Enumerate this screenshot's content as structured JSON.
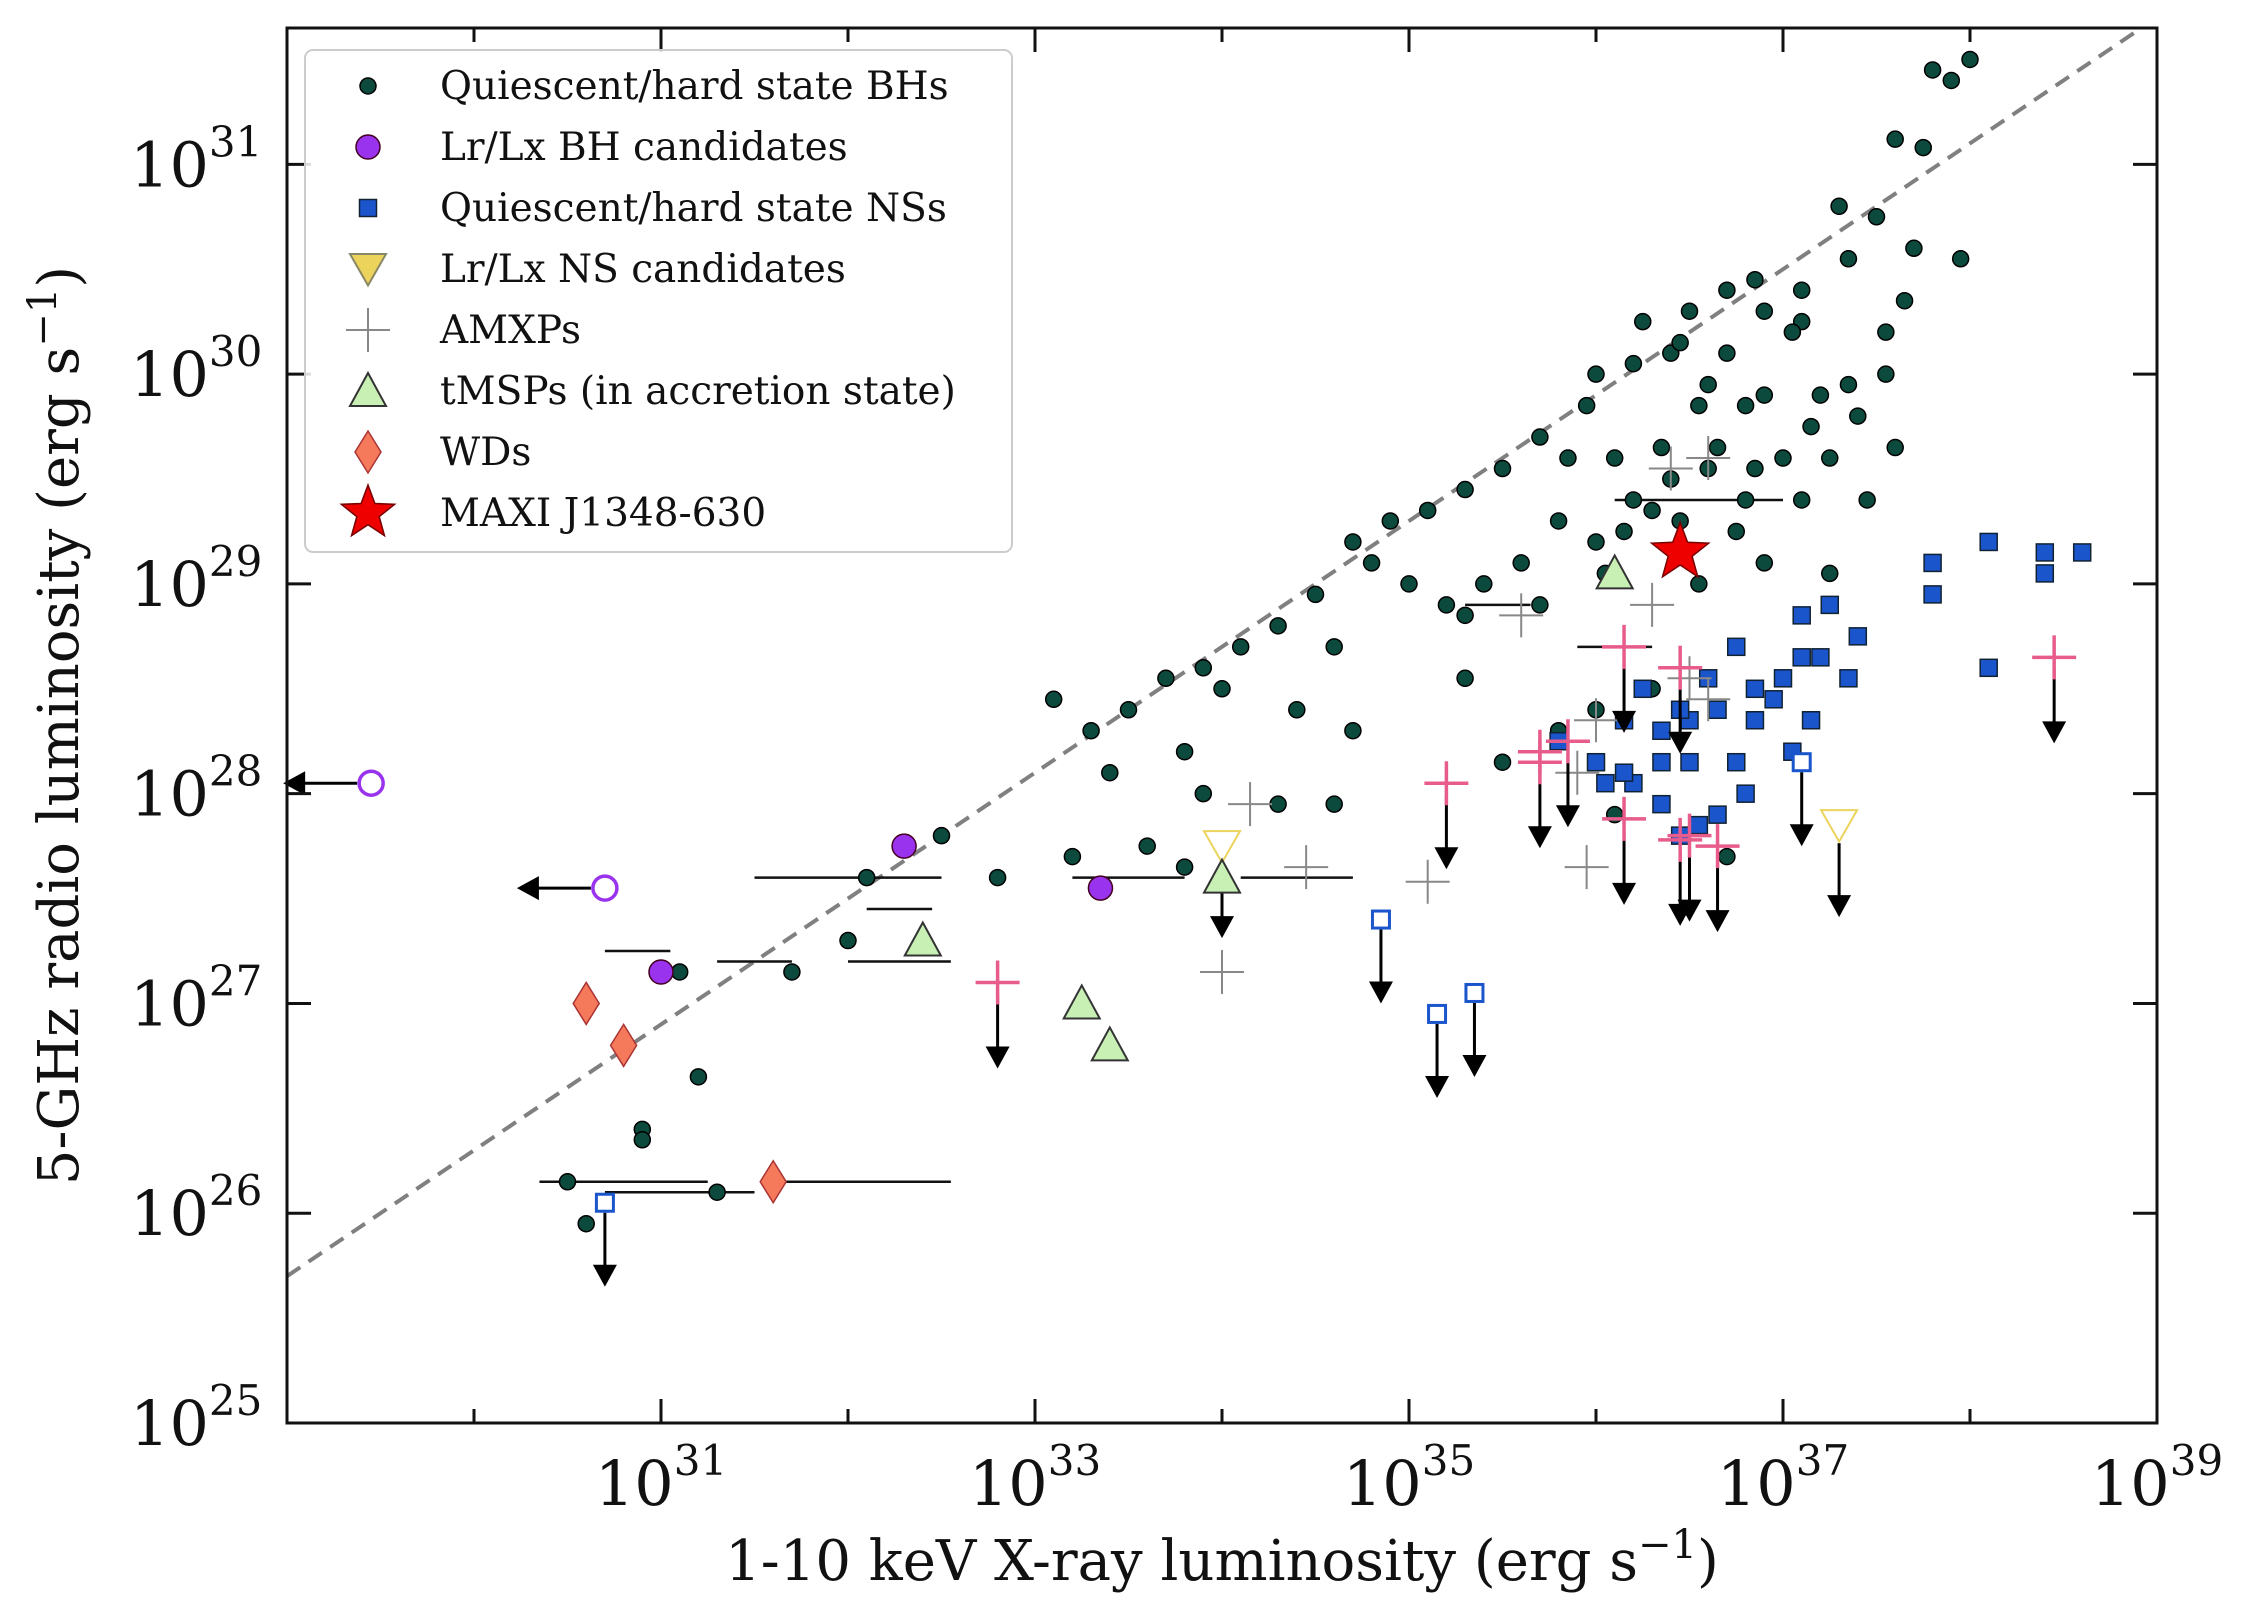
{
  "chart_data": {
    "type": "scatter",
    "title": "",
    "x_axis": {
      "label": "1-10 keV X-ray luminosity (erg s",
      "label_sup": "−1",
      "label_suffix": ")",
      "scale": "log",
      "range_log10": [
        29,
        39
      ],
      "tick_exponents": [
        "31",
        "33",
        "35",
        "37",
        "39"
      ]
    },
    "y_axis": {
      "label": "5-GHz radio luminosity (erg s",
      "label_sup": "−1",
      "label_suffix": ")",
      "scale": "log",
      "range_log10": [
        25,
        31.65
      ],
      "tick_exponents": [
        "25",
        "26",
        "27",
        "28",
        "29",
        "30",
        "31"
      ]
    },
    "tick_base": "10",
    "reference_line": {
      "style": "dashed",
      "color": "#808080",
      "slope": 0.6,
      "log_point": [
        31.5,
        27.2
      ]
    },
    "legend_position": "top-left",
    "legend": [
      {
        "key": "bh",
        "label": "Quiescent/hard state BHs"
      },
      {
        "key": "bhc",
        "label": "Lr/Lx BH candidates"
      },
      {
        "key": "ns",
        "label": "Quiescent/hard state NSs"
      },
      {
        "key": "nsc",
        "label": "Lr/Lx NS candidates"
      },
      {
        "key": "amxp",
        "label": "AMXPs"
      },
      {
        "key": "tmsp",
        "label": "tMSPs (in accretion state)"
      },
      {
        "key": "wd",
        "label": "WDs"
      },
      {
        "key": "maxi",
        "label": "MAXI J1348-630"
      }
    ],
    "colors": {
      "bh": "#0d4a3e",
      "bhc": "#9933ee",
      "ns": "#1a55cc",
      "nsc": "#ecd35c",
      "amxp_grey": "#888888",
      "amxp_pink": "#e85c8c",
      "tmsp": "#c8f0b4",
      "wd": "#f57a5c",
      "maxi": "#ee0000",
      "arrow": "#000000"
    },
    "series": [
      {
        "name": "Quiescent/hard state BHs",
        "key": "bh",
        "points": [
          [
            37.9,
            31.4
          ],
          [
            38.0,
            31.5
          ],
          [
            37.8,
            31.45
          ],
          [
            37.6,
            31.12
          ],
          [
            37.75,
            31.08
          ],
          [
            37.5,
            30.75
          ],
          [
            37.3,
            30.8
          ],
          [
            37.7,
            30.6
          ],
          [
            37.35,
            30.55
          ],
          [
            37.1,
            30.4
          ],
          [
            36.85,
            30.45
          ],
          [
            36.5,
            30.3
          ],
          [
            36.7,
            30.1
          ],
          [
            37.1,
            30.25
          ],
          [
            36.9,
            30.3
          ],
          [
            37.05,
            30.2
          ],
          [
            36.4,
            30.1
          ],
          [
            36.2,
            30.05
          ],
          [
            36.0,
            30.0
          ],
          [
            36.6,
            29.95
          ],
          [
            36.8,
            29.85
          ],
          [
            37.2,
            29.9
          ],
          [
            37.4,
            29.8
          ],
          [
            35.95,
            29.85
          ],
          [
            35.7,
            29.7
          ],
          [
            36.1,
            29.6
          ],
          [
            36.4,
            29.5
          ],
          [
            36.6,
            29.55
          ],
          [
            36.8,
            29.4
          ],
          [
            37.0,
            29.6
          ],
          [
            36.45,
            29.3
          ],
          [
            36.75,
            29.25
          ],
          [
            36.9,
            29.1
          ],
          [
            36.3,
            29.35
          ],
          [
            36.2,
            29.4
          ],
          [
            36.0,
            29.2
          ],
          [
            35.8,
            29.3
          ],
          [
            35.5,
            29.55
          ],
          [
            35.3,
            29.45
          ],
          [
            35.1,
            29.35
          ],
          [
            34.9,
            29.3
          ],
          [
            34.7,
            29.2
          ],
          [
            35.6,
            29.1
          ],
          [
            35.4,
            29.0
          ],
          [
            35.2,
            28.9
          ],
          [
            35.0,
            29.0
          ],
          [
            34.8,
            29.1
          ],
          [
            34.5,
            28.95
          ],
          [
            34.3,
            28.8
          ],
          [
            34.1,
            28.7
          ],
          [
            33.9,
            28.6
          ],
          [
            33.7,
            28.55
          ],
          [
            33.5,
            28.4
          ],
          [
            33.3,
            28.3
          ],
          [
            33.1,
            28.45
          ],
          [
            33.8,
            28.2
          ],
          [
            34.0,
            28.5
          ],
          [
            34.6,
            28.7
          ],
          [
            35.3,
            28.85
          ],
          [
            35.7,
            28.9
          ],
          [
            36.05,
            29.05
          ],
          [
            34.4,
            28.4
          ],
          [
            34.7,
            28.3
          ],
          [
            33.9,
            28.0
          ],
          [
            33.4,
            28.1
          ],
          [
            33.2,
            27.7
          ],
          [
            33.6,
            27.75
          ],
          [
            33.8,
            27.65
          ],
          [
            32.5,
            27.8
          ],
          [
            32.8,
            27.6
          ],
          [
            32.1,
            27.6
          ],
          [
            32.0,
            27.3
          ],
          [
            31.1,
            27.15
          ],
          [
            31.7,
            27.15
          ],
          [
            31.2,
            26.65
          ],
          [
            30.9,
            26.4
          ],
          [
            30.9,
            26.35
          ],
          [
            31.3,
            26.1
          ],
          [
            30.5,
            26.15
          ],
          [
            30.6,
            25.95
          ],
          [
            34.3,
            27.95
          ],
          [
            34.6,
            27.95
          ],
          [
            35.5,
            28.15
          ],
          [
            35.8,
            28.3
          ],
          [
            36.0,
            28.4
          ],
          [
            36.3,
            28.5
          ],
          [
            36.1,
            27.9
          ],
          [
            36.7,
            27.7
          ],
          [
            35.3,
            28.55
          ],
          [
            36.55,
            29.0
          ],
          [
            37.65,
            30.35
          ],
          [
            37.55,
            30.2
          ],
          [
            37.25,
            29.6
          ],
          [
            37.1,
            29.4
          ],
          [
            36.9,
            29.9
          ],
          [
            36.7,
            30.4
          ],
          [
            36.45,
            30.15
          ],
          [
            36.25,
            30.25
          ],
          [
            35.85,
            29.6
          ],
          [
            36.65,
            29.65
          ],
          [
            36.35,
            29.65
          ],
          [
            36.15,
            29.25
          ],
          [
            37.15,
            29.75
          ],
          [
            37.45,
            29.4
          ],
          [
            37.25,
            29.05
          ],
          [
            36.55,
            29.85
          ],
          [
            36.85,
            29.55
          ],
          [
            37.55,
            30.0
          ],
          [
            37.6,
            29.65
          ],
          [
            37.95,
            30.55
          ],
          [
            37.35,
            29.95
          ]
        ]
      },
      {
        "name": "Lr/Lx BH candidates",
        "key": "bhc",
        "points": [
          [
            32.3,
            27.75
          ],
          [
            33.35,
            27.55
          ],
          [
            31.0,
            27.15
          ]
        ],
        "upper_limits_x": [
          [
            29.45,
            28.05
          ],
          [
            30.7,
            27.55
          ]
        ]
      },
      {
        "name": "Quiescent/hard state NSs",
        "key": "ns",
        "points": [
          [
            38.1,
            29.2
          ],
          [
            38.4,
            29.15
          ],
          [
            38.6,
            29.15
          ],
          [
            38.4,
            29.05
          ],
          [
            37.8,
            29.1
          ],
          [
            37.8,
            28.95
          ],
          [
            37.25,
            28.9
          ],
          [
            37.2,
            28.65
          ],
          [
            37.4,
            28.75
          ],
          [
            37.0,
            28.55
          ],
          [
            36.85,
            28.5
          ],
          [
            36.6,
            28.55
          ],
          [
            36.5,
            28.35
          ],
          [
            36.45,
            28.4
          ],
          [
            36.25,
            28.5
          ],
          [
            36.15,
            28.35
          ],
          [
            36.0,
            28.15
          ],
          [
            35.8,
            28.25
          ],
          [
            36.35,
            28.15
          ],
          [
            36.2,
            28.05
          ],
          [
            36.05,
            28.05
          ],
          [
            36.5,
            28.15
          ],
          [
            36.65,
            28.4
          ],
          [
            36.35,
            28.3
          ],
          [
            36.85,
            28.35
          ],
          [
            36.95,
            28.45
          ],
          [
            36.75,
            28.15
          ],
          [
            37.15,
            28.35
          ],
          [
            37.05,
            28.2
          ],
          [
            36.15,
            28.1
          ],
          [
            36.35,
            27.95
          ],
          [
            36.55,
            27.85
          ],
          [
            36.45,
            27.8
          ],
          [
            36.65,
            27.9
          ],
          [
            36.8,
            28.0
          ],
          [
            36.75,
            28.7
          ],
          [
            37.1,
            28.65
          ],
          [
            37.35,
            28.55
          ],
          [
            38.1,
            28.6
          ],
          [
            37.1,
            28.85
          ]
        ],
        "upper_limits_y": [
          [
            30.7,
            26.05
          ],
          [
            34.85,
            27.4
          ],
          [
            35.15,
            26.95
          ],
          [
            35.35,
            27.05
          ],
          [
            37.1,
            28.15
          ]
        ]
      },
      {
        "name": "Lr/Lx NS candidates",
        "key": "nsc",
        "upper_limits_y": [
          [
            34.0,
            27.75
          ],
          [
            37.3,
            27.85
          ]
        ]
      },
      {
        "name": "AMXPs",
        "key": "amxp",
        "grey_points": [
          [
            34.15,
            27.95
          ],
          [
            34.45,
            27.65
          ],
          [
            34.0,
            27.15
          ],
          [
            35.1,
            27.58
          ],
          [
            35.95,
            27.65
          ],
          [
            35.6,
            28.85
          ],
          [
            36.4,
            29.55
          ],
          [
            36.6,
            29.6
          ],
          [
            36.3,
            28.9
          ],
          [
            36.0,
            28.35
          ],
          [
            36.6,
            28.45
          ],
          [
            35.9,
            28.1
          ],
          [
            36.5,
            28.55
          ]
        ],
        "pink_points": [
          [
            32.8,
            27.1
          ],
          [
            35.2,
            28.05
          ],
          [
            35.7,
            28.15
          ],
          [
            35.85,
            28.25
          ],
          [
            36.15,
            28.7
          ],
          [
            36.45,
            28.6
          ],
          [
            36.15,
            27.88
          ],
          [
            36.5,
            27.8
          ],
          [
            36.65,
            27.75
          ],
          [
            36.45,
            27.78
          ],
          [
            35.7,
            28.2
          ],
          [
            38.45,
            28.65
          ]
        ],
        "upper_limits_y": [
          [
            32.8,
            27.1
          ],
          [
            35.2,
            28.05
          ],
          [
            35.7,
            28.15
          ],
          [
            35.85,
            28.25
          ],
          [
            36.15,
            28.7
          ],
          [
            36.45,
            28.6
          ],
          [
            36.15,
            27.88
          ],
          [
            36.5,
            27.8
          ],
          [
            36.65,
            27.75
          ],
          [
            38.45,
            28.65
          ],
          [
            36.45,
            27.78
          ]
        ]
      },
      {
        "name": "tMSPs (in accretion state)",
        "key": "tmsp",
        "points": [
          [
            32.4,
            27.3
          ],
          [
            33.25,
            27.0
          ],
          [
            33.4,
            26.8
          ],
          [
            34.0,
            27.6
          ],
          [
            36.1,
            29.05
          ]
        ]
      },
      {
        "name": "WDs",
        "key": "wd",
        "points": [
          [
            30.6,
            27.0
          ],
          [
            30.8,
            26.8
          ],
          [
            31.6,
            26.15
          ]
        ]
      },
      {
        "name": "MAXI J1348-630",
        "key": "maxi",
        "points": [
          [
            36.45,
            29.15
          ]
        ]
      }
    ],
    "error_bars": [
      {
        "x": [
          30.35,
          31.25
        ],
        "y": 26.15
      },
      {
        "x": [
          30.7,
          31.5
        ],
        "y": 26.1
      },
      {
        "x": [
          30.7,
          31.05
        ],
        "y": 27.25
      },
      {
        "x": [
          31.65,
          32.55
        ],
        "y": 26.15
      },
      {
        "x": [
          32.1,
          32.45
        ],
        "y": 27.45
      },
      {
        "x": [
          34.1,
          34.7
        ],
        "y": 27.6
      },
      {
        "x": [
          36.1,
          37.0
        ],
        "y": 29.4
      },
      {
        "x": [
          35.9,
          36.3
        ],
        "y": 28.7
      },
      {
        "x": [
          35.3,
          35.65
        ],
        "y": 28.9
      },
      {
        "x": [
          31.5,
          32.5
        ],
        "y": 27.6
      },
      {
        "x": [
          33.2,
          33.8
        ],
        "y": 27.6
      },
      {
        "x": [
          31.3,
          31.7
        ],
        "y": 27.2
      },
      {
        "x": [
          32.0,
          32.55
        ],
        "y": 27.2
      }
    ]
  }
}
